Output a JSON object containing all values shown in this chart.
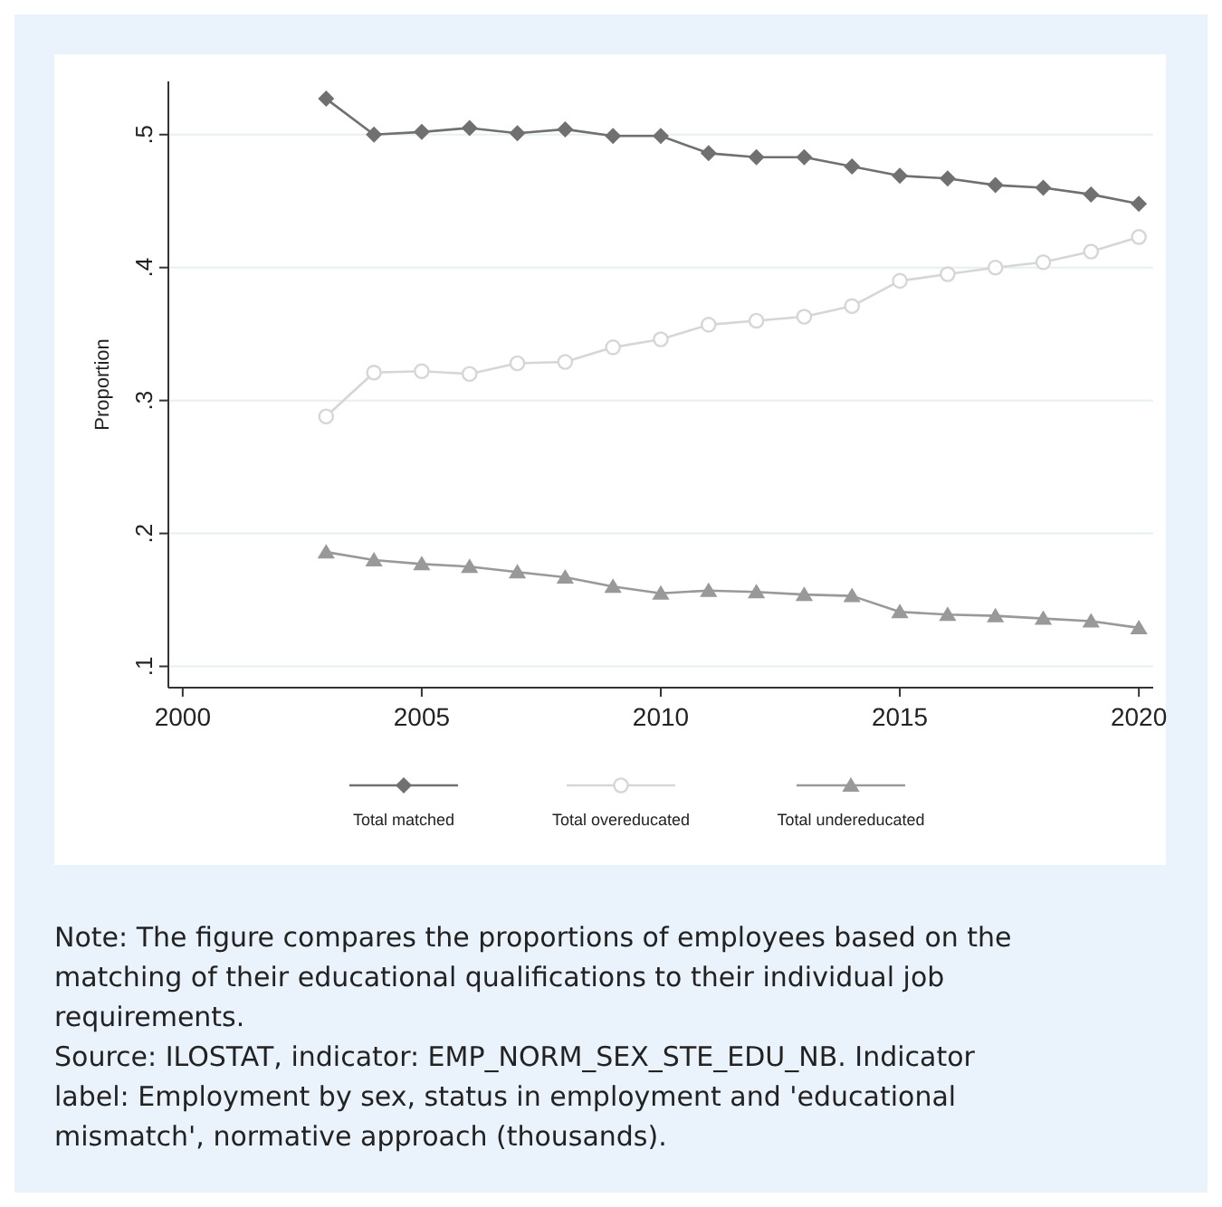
{
  "chart_data": {
    "type": "line",
    "ylabel": "Proportion",
    "x": [
      2003,
      2004,
      2005,
      2006,
      2007,
      2008,
      2009,
      2010,
      2011,
      2012,
      2013,
      2014,
      2015,
      2016,
      2017,
      2018,
      2019,
      2020
    ],
    "xlim": [
      1999.7,
      2020.3
    ],
    "xticks": [
      2000,
      2005,
      2010,
      2015,
      2020
    ],
    "ylim": [
      0.084,
      0.54
    ],
    "yticks": [
      {
        "value": 0.1,
        "label": ".1"
      },
      {
        "value": 0.2,
        "label": ".2"
      },
      {
        "value": 0.3,
        "label": ".3"
      },
      {
        "value": 0.4,
        "label": ".4"
      },
      {
        "value": 0.5,
        "label": ".5"
      }
    ],
    "grid": "y",
    "legend": "bottom",
    "series": [
      {
        "name": "Total matched",
        "color": "#707070",
        "marker": "diamond",
        "values": [
          0.527,
          0.5,
          0.502,
          0.505,
          0.501,
          0.504,
          0.499,
          0.499,
          0.486,
          0.483,
          0.483,
          0.476,
          0.469,
          0.467,
          0.462,
          0.46,
          0.455,
          0.448
        ]
      },
      {
        "name": "Total overeducated",
        "color": "#d6d6d6",
        "marker": "circle",
        "values": [
          0.288,
          0.321,
          0.322,
          0.32,
          0.328,
          0.329,
          0.34,
          0.346,
          0.357,
          0.36,
          0.363,
          0.371,
          0.39,
          0.395,
          0.4,
          0.404,
          0.412,
          0.423
        ]
      },
      {
        "name": "Total undereducated",
        "color": "#999999",
        "marker": "triangle",
        "values": [
          0.186,
          0.18,
          0.177,
          0.175,
          0.171,
          0.167,
          0.16,
          0.155,
          0.157,
          0.156,
          0.154,
          0.153,
          0.141,
          0.139,
          0.138,
          0.136,
          0.134,
          0.129
        ]
      }
    ],
    "annotations": [
      "Note: The figure compares the proportions of employees based on the matching of their educational qualifications to their individual job requirements.",
      "Source: ILOSTAT, indicator: EMP_NORM_SEX_STE_EDU_NB. Indicator label: Employment by sex, status in employment and 'educational mismatch', normative approach (thousands)."
    ]
  }
}
